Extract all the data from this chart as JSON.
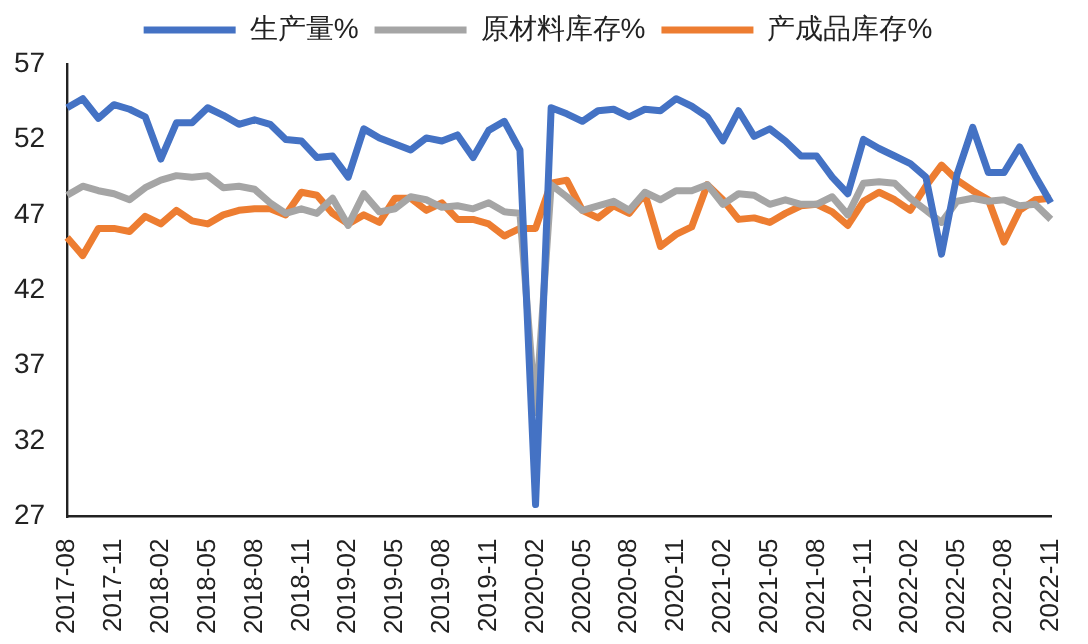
{
  "chart_data": {
    "type": "line",
    "categories": [
      "2017-08",
      null,
      null,
      "2017-11",
      null,
      null,
      "2018-02",
      null,
      null,
      "2018-05",
      null,
      null,
      "2018-08",
      null,
      null,
      "2018-11",
      null,
      null,
      "2019-02",
      null,
      null,
      "2019-05",
      null,
      null,
      "2019-08",
      null,
      null,
      "2019-11",
      null,
      null,
      "2020-02",
      null,
      null,
      "2020-05",
      null,
      null,
      "2020-08",
      null,
      null,
      "2020-11",
      null,
      null,
      "2021-02",
      null,
      null,
      "2021-05",
      null,
      null,
      "2021-08",
      null,
      null,
      "2021-11",
      null,
      null,
      "2022-02",
      null,
      null,
      "2022-05",
      null,
      null,
      "2022-08",
      null,
      null,
      "2022-11"
    ],
    "series": [
      {
        "name": "生产量%",
        "color": "#4472c4",
        "values": [
          54.1,
          54.7,
          53.4,
          54.3,
          54.0,
          53.5,
          50.7,
          53.1,
          53.1,
          54.1,
          53.6,
          53.0,
          53.3,
          53.0,
          52.0,
          51.9,
          50.8,
          50.9,
          49.5,
          52.7,
          52.1,
          51.7,
          51.3,
          52.1,
          51.9,
          52.3,
          50.8,
          52.6,
          53.2,
          51.3,
          27.8,
          54.1,
          53.7,
          53.2,
          53.9,
          54.0,
          53.5,
          54.0,
          53.9,
          54.7,
          54.2,
          53.5,
          51.9,
          53.9,
          52.2,
          52.7,
          51.9,
          50.9,
          50.9,
          49.5,
          48.4,
          52.0,
          51.4,
          50.9,
          50.4,
          49.5,
          44.4,
          49.7,
          52.8,
          49.8,
          49.8,
          51.5,
          49.6,
          47.8
        ]
      },
      {
        "name": "原材料库存%",
        "color": "#a5a5a5",
        "values": [
          48.3,
          48.9,
          48.6,
          48.4,
          48.0,
          48.8,
          49.3,
          49.6,
          49.5,
          49.6,
          48.8,
          48.9,
          48.7,
          47.8,
          47.1,
          47.4,
          47.1,
          48.1,
          46.3,
          48.4,
          47.2,
          47.4,
          48.2,
          48.0,
          47.5,
          47.6,
          47.4,
          47.8,
          47.2,
          47.1,
          33.9,
          49.0,
          48.2,
          47.3,
          47.6,
          47.9,
          47.3,
          48.5,
          48.0,
          48.6,
          48.6,
          49.0,
          47.7,
          48.4,
          48.3,
          47.7,
          48.0,
          47.7,
          47.7,
          48.2,
          47.0,
          49.1,
          49.2,
          49.1,
          48.1,
          47.3,
          46.5,
          47.9,
          48.1,
          47.9,
          48.0,
          47.6,
          47.7,
          46.7
        ]
      },
      {
        "name": "产成品库存%",
        "color": "#ed7d31",
        "values": [
          45.5,
          44.3,
          46.1,
          46.1,
          45.9,
          46.9,
          46.4,
          47.3,
          46.6,
          46.4,
          47.0,
          47.3,
          47.4,
          47.4,
          47.0,
          48.5,
          48.3,
          47.1,
          46.4,
          47.0,
          46.5,
          48.1,
          48.1,
          47.3,
          47.8,
          46.7,
          46.7,
          46.4,
          45.6,
          46.1,
          46.1,
          49.1,
          49.3,
          47.3,
          46.8,
          47.6,
          47.1,
          48.4,
          44.9,
          45.7,
          46.2,
          49.0,
          48.0,
          46.7,
          46.8,
          46.5,
          47.1,
          47.6,
          47.7,
          47.2,
          46.3,
          47.9,
          48.5,
          48.0,
          47.3,
          48.9,
          50.3,
          49.3,
          48.6,
          48.0,
          45.2,
          47.3,
          48.0,
          48.1
        ]
      }
    ],
    "ylim": [
      27,
      57
    ],
    "yticks": [
      27,
      32,
      37,
      42,
      47,
      52,
      57
    ],
    "grid": false,
    "legend": "top",
    "marker": "none",
    "line_style": "solid"
  }
}
